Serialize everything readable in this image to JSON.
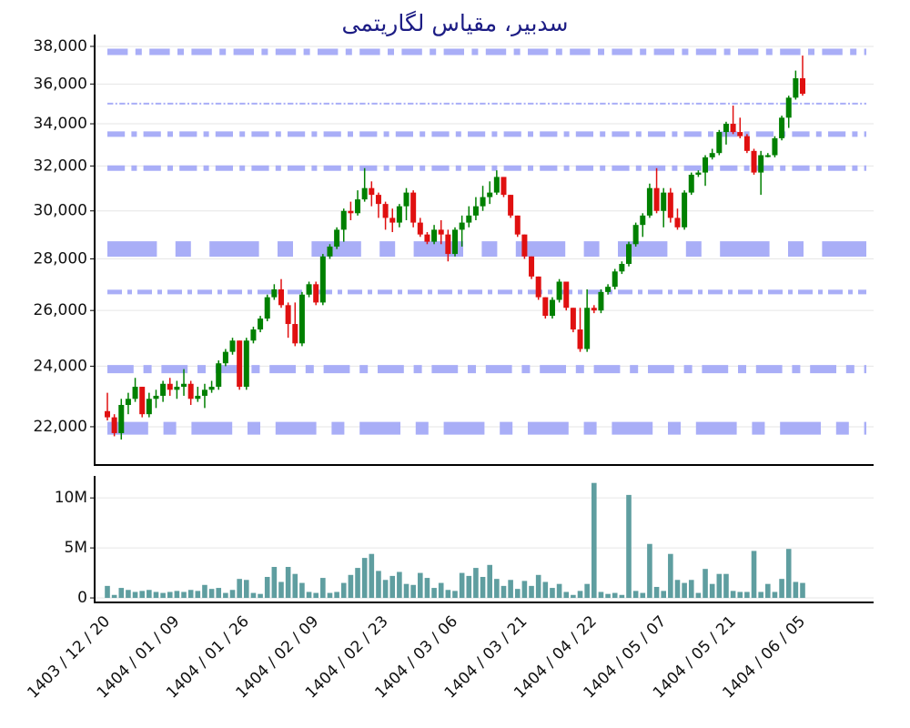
{
  "chart_data": [
    {
      "type": "candlestick",
      "title": "سدبیر، مقیاس لگاریتمی",
      "log_scale": true,
      "grid": true,
      "up_color": "#008000",
      "down_color": "#e01010",
      "level_color": "#a9aef7",
      "ylim": [
        20850,
        38650
      ],
      "yticks": [
        {
          "value": 22000,
          "label": "22,000"
        },
        {
          "value": 24000,
          "label": "24,000"
        },
        {
          "value": 26000,
          "label": "26,000"
        },
        {
          "value": 28000,
          "label": "28,000"
        },
        {
          "value": 30000,
          "label": "30,000"
        },
        {
          "value": 32000,
          "label": "32,000"
        },
        {
          "value": 34000,
          "label": "34,000"
        },
        {
          "value": 36000,
          "label": "36,000"
        },
        {
          "value": 38000,
          "label": "38,000"
        }
      ],
      "levels": [
        37700,
        35000,
        33500,
        31900,
        28400,
        26700,
        23900,
        21950
      ],
      "open": [
        22500,
        22300,
        21800,
        22700,
        22900,
        23300,
        22400,
        22900,
        23000,
        23400,
        23200,
        23300,
        23400,
        22900,
        23000,
        23200,
        23300,
        24100,
        24500,
        24900,
        23300,
        24900,
        25300,
        25700,
        26500,
        26800,
        26200,
        25500,
        24800,
        26600,
        27000,
        26300,
        28100,
        28500,
        29200,
        30000,
        29900,
        30500,
        31000,
        30700,
        30300,
        29700,
        29500,
        30200,
        30800,
        29500,
        29000,
        28700,
        29200,
        29000,
        28200,
        29200,
        29500,
        29800,
        30200,
        30600,
        30800,
        31500,
        30700,
        29800,
        29000,
        28100,
        27300,
        26500,
        25800,
        26400,
        27100,
        26100,
        25300,
        24600,
        26100,
        26000,
        26700,
        26900,
        27500,
        27800,
        28600,
        29400,
        29800,
        31000,
        30000,
        30800,
        29700,
        29300,
        30800,
        31600,
        31700,
        32400,
        32600,
        33600,
        34000,
        33600,
        33400,
        32700,
        31700,
        32500,
        32500,
        33300,
        34300,
        35300,
        36300
      ],
      "high": [
        23100,
        22400,
        22900,
        23100,
        23600,
        23300,
        23100,
        23200,
        23500,
        23600,
        23500,
        23900,
        23500,
        23300,
        23400,
        23500,
        24200,
        24600,
        25000,
        24900,
        25000,
        25400,
        25800,
        26600,
        27000,
        27200,
        26300,
        26300,
        26700,
        27100,
        27100,
        28200,
        28600,
        29300,
        30100,
        30400,
        30900,
        31900,
        31300,
        30800,
        30400,
        30100,
        30300,
        31000,
        30900,
        29700,
        29100,
        29400,
        29600,
        29200,
        29300,
        29800,
        30200,
        30600,
        31100,
        31300,
        31800,
        31500,
        30700,
        29800,
        29000,
        28100,
        27300,
        26500,
        26500,
        27200,
        27100,
        26100,
        26100,
        26800,
        26200,
        26800,
        27000,
        27600,
        27900,
        28700,
        29500,
        29900,
        31200,
        31900,
        31000,
        31000,
        30100,
        30900,
        31700,
        31800,
        32500,
        32800,
        33700,
        34100,
        34900,
        34300,
        33500,
        32800,
        32700,
        32600,
        33400,
        34400,
        35400,
        36700,
        37500
      ],
      "low": [
        22200,
        21700,
        21600,
        22400,
        22800,
        22300,
        22300,
        22600,
        22800,
        23000,
        22900,
        23000,
        22700,
        22800,
        22600,
        23100,
        23200,
        24000,
        24400,
        23200,
        23200,
        24800,
        25200,
        25600,
        26400,
        26100,
        25000,
        24700,
        24700,
        26500,
        26200,
        26200,
        28000,
        28400,
        28700,
        29600,
        29800,
        30400,
        30200,
        29700,
        29200,
        29100,
        29300,
        29600,
        29300,
        28900,
        28600,
        28600,
        28600,
        27900,
        28100,
        28500,
        29300,
        29600,
        30000,
        30300,
        30700,
        30600,
        29700,
        28900,
        28000,
        27200,
        26400,
        25700,
        25700,
        26300,
        26000,
        25200,
        24500,
        24500,
        25900,
        25900,
        26600,
        26800,
        27400,
        27700,
        28500,
        28900,
        29700,
        29900,
        29300,
        29500,
        29200,
        29200,
        30700,
        31500,
        31100,
        32300,
        32500,
        33000,
        33500,
        33300,
        32600,
        31600,
        30700,
        32400,
        32400,
        33200,
        33800,
        35200,
        35400
      ],
      "close": [
        22300,
        21800,
        22700,
        22900,
        23300,
        22400,
        22900,
        23000,
        23400,
        23200,
        23300,
        23400,
        22900,
        23000,
        23200,
        23300,
        24100,
        24500,
        24900,
        23300,
        24900,
        25300,
        25700,
        26500,
        26800,
        26200,
        25500,
        24800,
        26600,
        27000,
        26300,
        28100,
        28500,
        29200,
        30000,
        29900,
        30500,
        31000,
        30700,
        30300,
        29700,
        29500,
        30200,
        30800,
        29500,
        29000,
        28700,
        29200,
        29000,
        28200,
        29200,
        29500,
        29800,
        30200,
        30600,
        30800,
        31500,
        30700,
        29800,
        29000,
        28100,
        27300,
        26500,
        25800,
        26400,
        27100,
        26100,
        25300,
        24600,
        26100,
        26000,
        26700,
        26900,
        27500,
        27800,
        28600,
        29400,
        29800,
        31000,
        30000,
        30800,
        29700,
        29300,
        30800,
        31600,
        31700,
        32400,
        32600,
        33600,
        34000,
        33600,
        33400,
        32700,
        31700,
        32500,
        32500,
        33300,
        34300,
        35300,
        36300,
        35500
      ]
    },
    {
      "type": "bar",
      "color": "#5f9ea0",
      "grid": true,
      "ylim": [
        -450000,
        12200000
      ],
      "yticks": [
        0,
        {
          "value": 5000000,
          "label": "5M"
        },
        {
          "value": 10000000,
          "label": "10M"
        }
      ],
      "categories": [
        "1403 / 12 / 20",
        null,
        null,
        null,
        null,
        null,
        null,
        null,
        null,
        null,
        "1404 / 01 / 09",
        null,
        null,
        null,
        null,
        null,
        null,
        null,
        null,
        null,
        "1404 / 01 / 26",
        null,
        null,
        null,
        null,
        null,
        null,
        null,
        null,
        null,
        "1404 / 02 / 09",
        null,
        null,
        null,
        null,
        null,
        null,
        null,
        null,
        null,
        "1404 / 02 / 23",
        null,
        null,
        null,
        null,
        null,
        null,
        null,
        null,
        null,
        "1404 / 03 / 06",
        null,
        null,
        null,
        null,
        null,
        null,
        null,
        null,
        null,
        "1404 / 03 / 21",
        null,
        null,
        null,
        null,
        null,
        null,
        null,
        null,
        null,
        "1404 / 04 / 22",
        null,
        null,
        null,
        null,
        null,
        null,
        null,
        null,
        null,
        "1404 / 05 / 07",
        null,
        null,
        null,
        null,
        null,
        null,
        null,
        null,
        null,
        "1404 / 05 / 21",
        null,
        null,
        null,
        null,
        null,
        null,
        null,
        null,
        null,
        "1404 / 06 / 05"
      ],
      "values": [
        1200000,
        300000,
        1000000,
        800000,
        600000,
        700000,
        800000,
        600000,
        500000,
        600000,
        700000,
        600000,
        800000,
        700000,
        1300000,
        900000,
        1000000,
        500000,
        800000,
        1900000,
        1800000,
        500000,
        400000,
        2100000,
        3100000,
        1600000,
        3100000,
        2400000,
        1500000,
        600000,
        500000,
        2000000,
        500000,
        600000,
        1500000,
        2300000,
        3000000,
        4000000,
        4400000,
        2700000,
        1800000,
        2200000,
        2600000,
        1400000,
        1300000,
        2500000,
        2000000,
        1000000,
        1500000,
        800000,
        700000,
        2500000,
        2200000,
        3000000,
        2100000,
        3300000,
        1900000,
        1200000,
        1800000,
        900000,
        1700000,
        1200000,
        2300000,
        1600000,
        1000000,
        1400000,
        600000,
        300000,
        700000,
        1400000,
        11500000,
        600000,
        400000,
        500000,
        300000,
        10300000,
        700000,
        500000,
        5400000,
        1100000,
        700000,
        4400000,
        1800000,
        1500000,
        1800000,
        500000,
        2900000,
        1400000,
        2400000,
        2400000,
        700000,
        600000,
        600000,
        4700000,
        600000,
        1400000,
        600000,
        1900000,
        4900000,
        1600000,
        1500000
      ]
    }
  ]
}
